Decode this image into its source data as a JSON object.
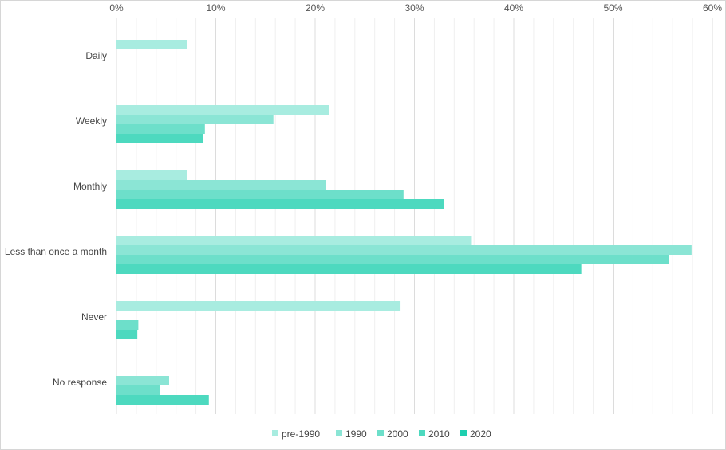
{
  "chart_data": {
    "type": "bar",
    "orientation": "horizontal",
    "title": "",
    "xlabel": "",
    "ylabel": "",
    "xlim": [
      0,
      60
    ],
    "x_ticks": [
      "0%",
      "10%",
      "20%",
      "30%",
      "40%",
      "50%",
      "60%"
    ],
    "categories": [
      "Daily",
      "Weekly",
      "Monthly",
      "Less than once a month",
      "Never",
      "No response"
    ],
    "series": [
      {
        "name": "pre-1990",
        "color": "#a8ece0",
        "values": [
          7.1,
          21.4,
          7.1,
          35.7,
          28.6,
          0
        ]
      },
      {
        "name": "1990",
        "color": "#8be5d5",
        "values": [
          0,
          15.8,
          21.1,
          57.9,
          0,
          5.3
        ]
      },
      {
        "name": "2000",
        "color": "#6ddfca",
        "values": [
          0,
          8.9,
          28.9,
          55.6,
          2.2,
          4.4
        ]
      },
      {
        "name": "2010",
        "color": "#4dd9bf",
        "values": [
          0,
          8.7,
          33.0,
          46.8,
          2.1,
          9.3
        ]
      },
      {
        "name": "2020",
        "color": "#1ecfaf",
        "values": [
          0,
          0,
          0,
          0,
          0,
          0
        ]
      }
    ],
    "legend_position": "bottom-center",
    "grid": true
  }
}
